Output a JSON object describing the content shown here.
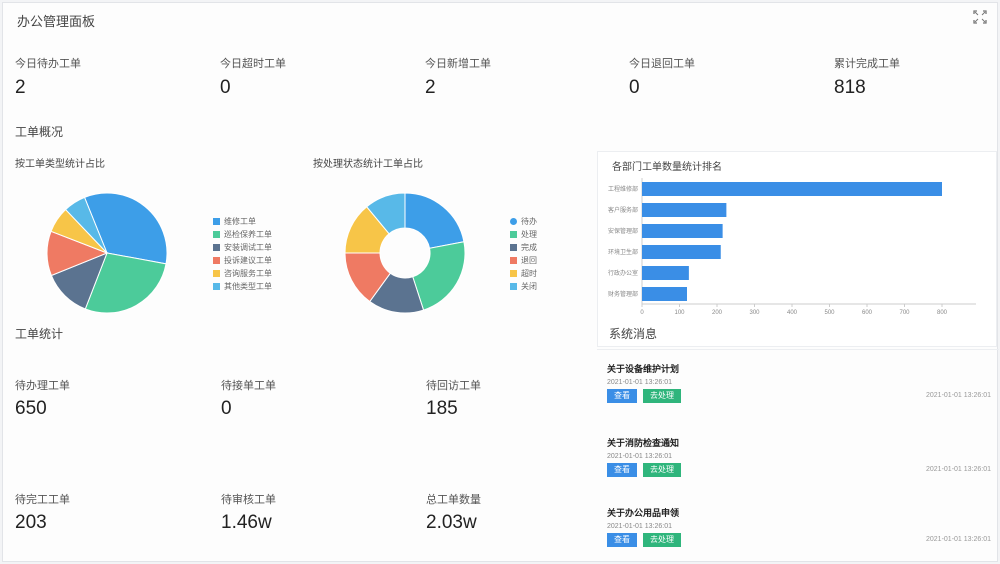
{
  "header": {
    "title": "办公管理面板"
  },
  "kpis": [
    {
      "label": "今日待办工单",
      "value": "2"
    },
    {
      "label": "今日超时工单",
      "value": "0"
    },
    {
      "label": "今日新增工单",
      "value": "2"
    },
    {
      "label": "今日退回工单",
      "value": "0"
    },
    {
      "label": "累计完成工单",
      "value": "818"
    }
  ],
  "sections": {
    "workorder": "工单概况",
    "stats": "工单统计",
    "notices": "系统消息"
  },
  "charts": {
    "pie": {
      "title": "按工单类型统计占比",
      "legend": [
        "维修工单",
        "巡检保养工单",
        "安装调试工单",
        "投诉建议工单",
        "咨询服务工单",
        "其他类型工单"
      ]
    },
    "donut": {
      "title": "按处理状态统计工单占比",
      "legend": [
        "待办",
        "处理",
        "完成",
        "退回",
        "超时",
        "关闭"
      ]
    },
    "bar": {
      "title": "各部门工单数量统计排名",
      "categories": [
        "工程维修部",
        "客户服务部",
        "安保管理部",
        "环境卫生部",
        "行政办公室",
        "财务管理部"
      ],
      "ticks": [
        "0",
        "100",
        "200",
        "300",
        "400",
        "500",
        "600",
        "700",
        "800"
      ]
    }
  },
  "chart_data": [
    {
      "type": "pie",
      "title": "按工单类型统计占比",
      "labels": [
        "维修工单",
        "巡检保养工单",
        "安装调试工单",
        "投诉建议工单",
        "咨询服务工单",
        "其他类型工单"
      ],
      "values": [
        34,
        28,
        13,
        12,
        7,
        6
      ],
      "colors": [
        "#3d9ee8",
        "#4ccb9a",
        "#5b7390",
        "#ef7a63",
        "#f7c548",
        "#58b9e8"
      ]
    },
    {
      "type": "pie",
      "title": "按处理状态统计工单占比",
      "labels": [
        "待办",
        "处理",
        "完成",
        "退回",
        "超时",
        "关闭"
      ],
      "values": [
        22,
        23,
        15,
        15,
        14,
        11
      ],
      "colors": [
        "#3d9ee8",
        "#4ccb9a",
        "#5b7390",
        "#ef7a63",
        "#f7c548",
        "#58b9e8"
      ]
    },
    {
      "type": "bar",
      "orientation": "horizontal",
      "title": "各部门工单数量统计排名",
      "categories": [
        "工程维修部",
        "客户服务部",
        "安保管理部",
        "环境卫生部",
        "行政办公室",
        "财务管理部"
      ],
      "values": [
        800,
        225,
        215,
        210,
        125,
        120
      ],
      "xlim": [
        0,
        880
      ],
      "color": "#3a8ee6"
    }
  ],
  "metrics": [
    {
      "label": "待办理工单",
      "value": "650"
    },
    {
      "label": "待接单工单",
      "value": "0"
    },
    {
      "label": "待回访工单",
      "value": "185"
    },
    {
      "label": "待完工工单",
      "value": "203"
    },
    {
      "label": "待审核工单",
      "value": "1.46w"
    },
    {
      "label": "总工单数量",
      "value": "2.03w"
    }
  ],
  "notices": [
    {
      "title": "关于设备维护计划",
      "sub": "2021-01-01 13:26:01",
      "time": "2021-01-01 13:26:01",
      "view": "查看",
      "handle": "去处理"
    },
    {
      "title": "关于消防检查通知",
      "sub": "2021-01-01 13:26:01",
      "time": "2021-01-01 13:26:01",
      "view": "查看",
      "handle": "去处理"
    },
    {
      "title": "关于办公用品申领",
      "sub": "2021-01-01 13:26:01",
      "time": "2021-01-01 13:26:01",
      "view": "查看",
      "handle": "去处理"
    }
  ]
}
